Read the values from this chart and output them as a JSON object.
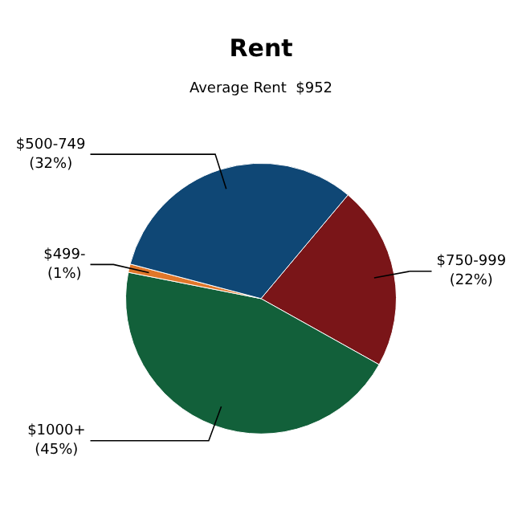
{
  "chart_data": {
    "type": "pie",
    "title": "Rent",
    "subtitle": "Average Rent  $952",
    "categories": [
      "$750-999",
      "$1000+",
      "$499-",
      "$500-749"
    ],
    "values": [
      22,
      45,
      1,
      32
    ],
    "value_labels": [
      "(22%)",
      "(45%)",
      "(1%)",
      "(32%)"
    ],
    "colors": [
      "#7a1518",
      "#12603a",
      "#e0772a",
      "#0f4775"
    ],
    "legend": false
  }
}
